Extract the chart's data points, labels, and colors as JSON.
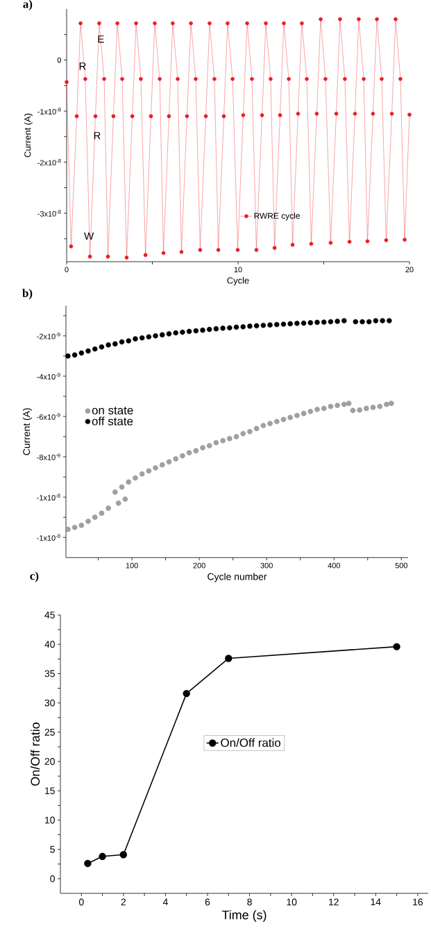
{
  "chart_data": [
    {
      "type": "line",
      "title": "a)",
      "xlabel": "Cycle",
      "ylabel": "Current (A)",
      "xlim": [
        0,
        20
      ],
      "ylim": [
        -3.95e-08,
        1e-08
      ],
      "xticks": [
        0,
        {
          "value": 5,
          "label": null
        },
        10,
        {
          "value": 15,
          "label": null
        },
        20
      ],
      "yticks": [
        {
          "value": -3.5e-08,
          "label": null
        },
        {
          "value": -3e-08,
          "label": "-3x10$^{-8}$"
        },
        {
          "value": -2.5e-08,
          "label": null
        },
        {
          "value": -2e-08,
          "label": "-2x10$^{-8}$"
        },
        {
          "value": -1.5e-08,
          "label": null
        },
        {
          "value": -1e-08,
          "label": "-1x10$^{-8}$"
        },
        {
          "value": -5e-09,
          "label": null
        },
        0,
        {
          "value": 5e-09,
          "label": null
        }
      ],
      "marker": "circle",
      "line_style": "solid",
      "legend": "bottom right",
      "annotations": [
        {
          "text": "E",
          "x": 2.0,
          "y": 4.1e-09
        },
        {
          "text": "R",
          "x": 0.93,
          "y": -1.2e-09
        },
        {
          "text": "R",
          "x": 1.78,
          "y": -1.48e-08
        },
        {
          "text": "W",
          "x": 1.3,
          "y": -3.45e-08
        }
      ],
      "series": [
        {
          "name": "RWRE cycle",
          "color": "#ed1c24",
          "x": [
            0,
            0.26,
            0.59,
            0.81,
            1.09,
            1.36,
            1.68,
            1.9,
            2.19,
            2.41,
            2.73,
            2.96,
            3.24,
            3.5,
            3.83,
            4.05,
            4.33,
            4.6,
            4.92,
            5.14,
            5.43,
            5.65,
            5.97,
            6.19,
            6.48,
            6.7,
            7.02,
            7.25,
            7.53,
            7.79,
            8.12,
            8.34,
            8.62,
            8.85,
            9.17,
            9.39,
            9.68,
            9.98,
            10.3,
            10.53,
            10.81,
            11.07,
            11.4,
            11.62,
            11.9,
            12.13,
            12.45,
            12.67,
            12.96,
            13.18,
            13.5,
            13.72,
            14.01,
            14.27,
            14.59,
            14.82,
            15.1,
            15.4,
            15.73,
            15.95,
            16.23,
            16.5,
            16.82,
            17.04,
            17.33,
            17.55,
            17.87,
            18.1,
            18.38,
            18.64,
            18.97,
            19.19,
            19.47,
            19.72,
            20
          ],
          "values": [
            -4.3e-09,
            -3.65e-08,
            -1.1e-08,
            7.2e-09,
            -3.7e-09,
            -3.85e-08,
            -1.1e-08,
            7.2e-09,
            -3.7e-09,
            -3.85e-08,
            -1.1e-08,
            7.2e-09,
            -3.7e-09,
            -3.87e-08,
            -1.1e-08,
            7.2e-09,
            -3.7e-09,
            -3.82e-08,
            -1.1e-08,
            7.2e-09,
            -3.7e-09,
            -3.78e-08,
            -1.1e-08,
            7.2e-09,
            -3.7e-09,
            -3.76e-08,
            -1.1e-08,
            7.2e-09,
            -3.7e-09,
            -3.72e-08,
            -1.1e-08,
            7.2e-09,
            -3.7e-09,
            -3.72e-08,
            -1.1e-08,
            7.2e-09,
            -3.7e-09,
            -3.72e-08,
            -1.08e-08,
            7.2e-09,
            -3.7e-09,
            -3.72e-08,
            -1.08e-08,
            7.2e-09,
            -3.7e-09,
            -3.68e-08,
            -1.08e-08,
            7.2e-09,
            -3.7e-09,
            -3.62e-08,
            -1.05e-08,
            7.2e-09,
            -3.7e-09,
            -3.6e-08,
            -1.05e-08,
            8e-09,
            -3.7e-09,
            -3.58e-08,
            -1.05e-08,
            8e-09,
            -3.7e-09,
            -3.56e-08,
            -1.05e-08,
            8e-09,
            -3.7e-09,
            -3.55e-08,
            -1.05e-08,
            8e-09,
            -3.7e-09,
            -3.53e-08,
            -1.05e-08,
            8e-09,
            -3.7e-09,
            -3.52e-08,
            -1.07e-08
          ]
        }
      ]
    },
    {
      "type": "scatter",
      "title": "b)",
      "xlabel": "Cycle number",
      "ylabel": "Current (A)",
      "xlim": [
        2,
        510
      ],
      "ylim": [
        -1.3e-08,
        -5e-10
      ],
      "xticks": [
        {
          "value": 50,
          "label": null
        },
        100,
        {
          "value": 150,
          "label": null
        },
        200,
        {
          "value": 250,
          "label": null
        },
        300,
        {
          "value": 350,
          "label": null
        },
        400,
        {
          "value": 450,
          "label": null
        },
        500
      ],
      "yticks": [
        {
          "value": -1.2e-08,
          "label": "-1x10$^{-8}$"
        },
        {
          "value": -1.1e-08,
          "label": null
        },
        {
          "value": -1e-08,
          "label": "-1x10$^{-8}$"
        },
        {
          "value": -9e-09,
          "label": null
        },
        {
          "value": -8e-09,
          "label": "-8x10$^{-9}$"
        },
        {
          "value": -7e-09,
          "label": null
        },
        {
          "value": -6e-09,
          "label": "-6x10$^{-9}$"
        },
        {
          "value": -5e-09,
          "label": null
        },
        {
          "value": -4e-09,
          "label": "-4x10$^{-9}$"
        },
        {
          "value": -3e-09,
          "label": null
        },
        {
          "value": -2e-09,
          "label": "-2x10$^{-9}$"
        },
        {
          "value": -1e-09,
          "label": null
        }
      ],
      "marker": "circle",
      "legend": "left",
      "series": [
        {
          "name": "on state",
          "color": "#a0a0a0",
          "x": [
            5,
            15,
            25,
            35,
            45,
            55,
            65,
            75,
            80,
            85,
            90,
            95,
            105,
            115,
            125,
            135,
            145,
            155,
            165,
            175,
            185,
            195,
            205,
            215,
            225,
            235,
            245,
            255,
            265,
            275,
            285,
            295,
            305,
            315,
            325,
            335,
            345,
            355,
            365,
            375,
            385,
            395,
            405,
            415,
            422,
            428,
            438,
            448,
            458,
            468,
            478,
            485
          ],
          "values": [
            -1.16e-08,
            -1.15e-08,
            -1.14e-08,
            -1.12e-08,
            -1.1e-08,
            -1.08e-08,
            -1.055e-08,
            -9.75e-09,
            -1.03e-08,
            -9.5e-09,
            -1.01e-08,
            -9.25e-09,
            -9.05e-09,
            -8.85e-09,
            -8.7e-09,
            -8.55e-09,
            -8.4e-09,
            -8.25e-09,
            -8.1e-09,
            -7.95e-09,
            -7.8e-09,
            -7.7e-09,
            -7.55e-09,
            -7.45e-09,
            -7.3e-09,
            -7.2e-09,
            -7.1e-09,
            -7e-09,
            -6.85e-09,
            -6.75e-09,
            -6.6e-09,
            -6.45e-09,
            -6.35e-09,
            -6.25e-09,
            -6.15e-09,
            -6.05e-09,
            -5.95e-09,
            -5.85e-09,
            -5.75e-09,
            -5.65e-09,
            -5.6e-09,
            -5.5e-09,
            -5.45e-09,
            -5.4e-09,
            -5.35e-09,
            -5.7e-09,
            -5.68e-09,
            -5.6e-09,
            -5.55e-09,
            -5.5e-09,
            -5.4e-09,
            -5.35e-09
          ]
        },
        {
          "name": "off state",
          "color": "#000000",
          "x": [
            5,
            15,
            25,
            35,
            45,
            55,
            65,
            75,
            85,
            95,
            105,
            115,
            125,
            135,
            145,
            155,
            165,
            175,
            185,
            195,
            205,
            215,
            225,
            235,
            245,
            255,
            265,
            275,
            285,
            295,
            305,
            315,
            325,
            335,
            345,
            355,
            365,
            375,
            385,
            395,
            405,
            415,
            432,
            442,
            452,
            462,
            472,
            482
          ],
          "values": [
            -3e-09,
            -2.95e-09,
            -2.85e-09,
            -2.75e-09,
            -2.65e-09,
            -2.55e-09,
            -2.45e-09,
            -2.4e-09,
            -2.3e-09,
            -2.25e-09,
            -2.15e-09,
            -2.1e-09,
            -2.05e-09,
            -2e-09,
            -1.95e-09,
            -1.9e-09,
            -1.85e-09,
            -1.82e-09,
            -1.78e-09,
            -1.75e-09,
            -1.72e-09,
            -1.68e-09,
            -1.65e-09,
            -1.62e-09,
            -1.6e-09,
            -1.57e-09,
            -1.55e-09,
            -1.52e-09,
            -1.5e-09,
            -1.48e-09,
            -1.46e-09,
            -1.44e-09,
            -1.42e-09,
            -1.4e-09,
            -1.38e-09,
            -1.37e-09,
            -1.35e-09,
            -1.33e-09,
            -1.32e-09,
            -1.3e-09,
            -1.28e-09,
            -1.25e-09,
            -1.3e-09,
            -1.3e-09,
            -1.3e-09,
            -1.25e-09,
            -1.25e-09,
            -1.25e-09
          ]
        }
      ]
    },
    {
      "type": "line",
      "title": "c)",
      "xlabel": "Time (s)",
      "ylabel": "On/Off ratio",
      "xlim": [
        -1,
        16.5
      ],
      "ylim": [
        -2.5,
        45
      ],
      "xticks": [
        0,
        {
          "value": 1,
          "label": null
        },
        2,
        {
          "value": 3,
          "label": null
        },
        4,
        {
          "value": 5,
          "label": null
        },
        6,
        {
          "value": 7,
          "label": null
        },
        8,
        {
          "value": 9,
          "label": null
        },
        10,
        {
          "value": 11,
          "label": null
        },
        12,
        {
          "value": 13,
          "label": null
        },
        14,
        {
          "value": 15,
          "label": null
        },
        16
      ],
      "yticks": [
        0,
        {
          "value": 2.5,
          "label": null
        },
        5,
        {
          "value": 7.5,
          "label": null
        },
        10,
        {
          "value": 12.5,
          "label": null
        },
        15,
        {
          "value": 17.5,
          "label": null
        },
        20,
        {
          "value": 22.5,
          "label": null
        },
        25,
        {
          "value": 27.5,
          "label": null
        },
        30,
        {
          "value": 32.5,
          "label": null
        },
        35,
        {
          "value": 37.5,
          "label": null
        },
        40,
        {
          "value": 42.5,
          "label": null
        },
        45
      ],
      "marker": "circle",
      "line_style": "solid",
      "legend": "center",
      "series": [
        {
          "name": "On/Off ratio",
          "color": "#000000",
          "x": [
            0.3,
            1,
            2,
            5,
            7,
            15
          ],
          "values": [
            2.6,
            3.8,
            4.1,
            31.6,
            37.6,
            39.6
          ]
        }
      ]
    }
  ]
}
